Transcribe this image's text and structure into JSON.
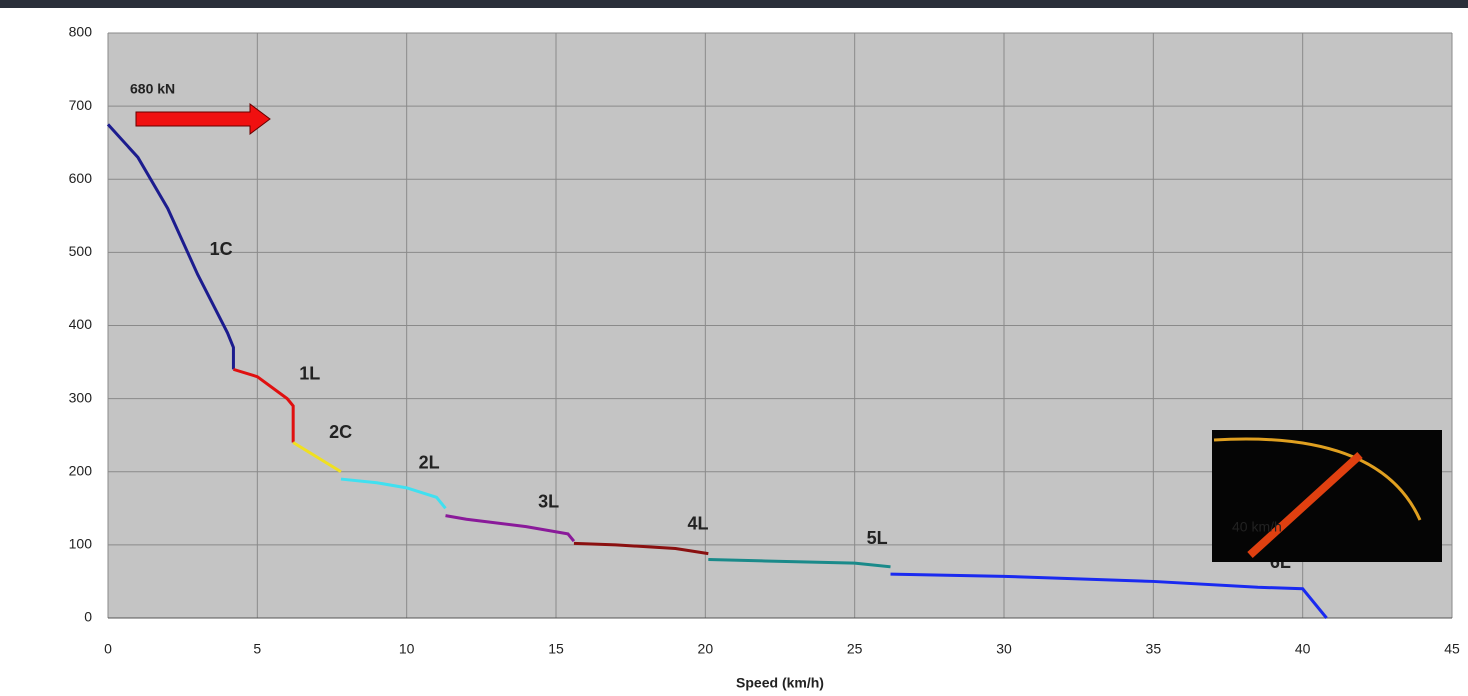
{
  "chart_data": {
    "type": "line",
    "x_label": "Speed (km/h)",
    "xlim": [
      0,
      45
    ],
    "xticks": [
      0,
      5,
      10,
      15,
      20,
      25,
      30,
      35,
      40,
      45
    ],
    "ylim": [
      0,
      800
    ],
    "yticks": [
      0,
      100,
      200,
      300,
      400,
      500,
      600,
      700,
      800
    ],
    "grid": true,
    "annotations": [
      "680 kN",
      "40 km/h"
    ],
    "series": [
      {
        "name": "1C",
        "color": "#1c1c8e",
        "x": [
          0,
          1,
          2,
          3,
          4,
          4.2,
          4.2
        ],
        "values": [
          675,
          630,
          560,
          470,
          390,
          370,
          340
        ]
      },
      {
        "name": "1L",
        "color": "#e01010",
        "x": [
          4.2,
          5,
          6,
          6.2,
          6.2
        ],
        "values": [
          340,
          330,
          300,
          290,
          240
        ]
      },
      {
        "name": "2C",
        "color": "#f0e020",
        "x": [
          6.2,
          7,
          7.8
        ],
        "values": [
          240,
          220,
          200
        ]
      },
      {
        "name": "2L",
        "color": "#40e0f0",
        "x": [
          7.8,
          9,
          10,
          11,
          11.3
        ],
        "values": [
          190,
          185,
          178,
          165,
          150
        ]
      },
      {
        "name": "3L",
        "color": "#8a1a9a",
        "x": [
          11.3,
          12,
          14,
          15.4,
          15.6
        ],
        "values": [
          140,
          135,
          125,
          115,
          105
        ]
      },
      {
        "name": "4L",
        "color": "#8a1010",
        "x": [
          15.6,
          17,
          19,
          20.1
        ],
        "values": [
          102,
          100,
          95,
          88
        ]
      },
      {
        "name": "5L",
        "color": "#1a8a8a",
        "x": [
          20.1,
          22,
          25,
          26.2
        ],
        "values": [
          80,
          78,
          75,
          70
        ]
      },
      {
        "name": "6L",
        "color": "#1a2af0",
        "x": [
          26.2,
          30,
          35,
          38.5,
          40,
          40.8
        ],
        "values": [
          60,
          57,
          50,
          42,
          40,
          0
        ]
      }
    ]
  }
}
